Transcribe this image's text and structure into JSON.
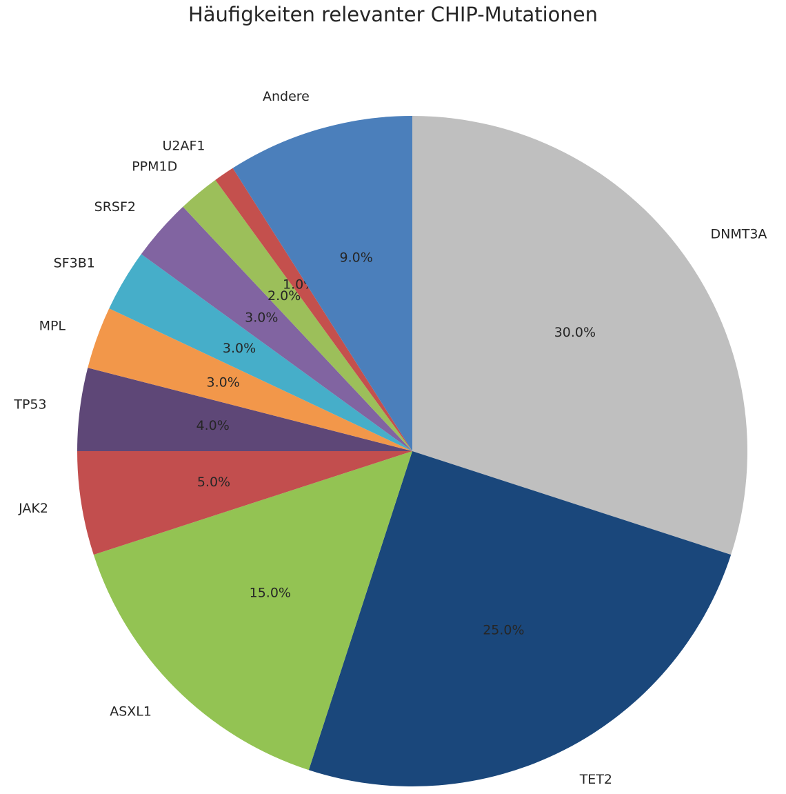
{
  "chart_data": {
    "type": "pie",
    "title": "Häufigkeiten relevanter CHIP-Mutationen",
    "slices": [
      {
        "label": "DNMT3A",
        "value": 30.0,
        "pct_label": "30.0%",
        "color": "#bfbfbf"
      },
      {
        "label": "TET2",
        "value": 25.0,
        "pct_label": "25.0%",
        "color": "#1a477b"
      },
      {
        "label": "ASXL1",
        "value": 15.0,
        "pct_label": "15.0%",
        "color": "#93c353"
      },
      {
        "label": "JAK2",
        "value": 5.0,
        "pct_label": "5.0%",
        "color": "#c24e4e"
      },
      {
        "label": "TP53",
        "value": 4.0,
        "pct_label": "4.0%",
        "color": "#5e4777"
      },
      {
        "label": "MPL",
        "value": 3.0,
        "pct_label": "3.0%",
        "color": "#f2974a"
      },
      {
        "label": "SF3B1",
        "value": 3.0,
        "pct_label": "3.0%",
        "color": "#46aec9"
      },
      {
        "label": "SRSF2",
        "value": 3.0,
        "pct_label": "3.0%",
        "color": "#8164a1"
      },
      {
        "label": "PPM1D",
        "value": 2.0,
        "pct_label": "2.0%",
        "color": "#9cbf5a"
      },
      {
        "label": "U2AF1",
        "value": 1.0,
        "pct_label": "1.0%",
        "color": "#c4504d"
      },
      {
        "label": "Andere",
        "value": 9.0,
        "pct_label": "9.0%",
        "color": "#4b7fbb"
      }
    ]
  }
}
